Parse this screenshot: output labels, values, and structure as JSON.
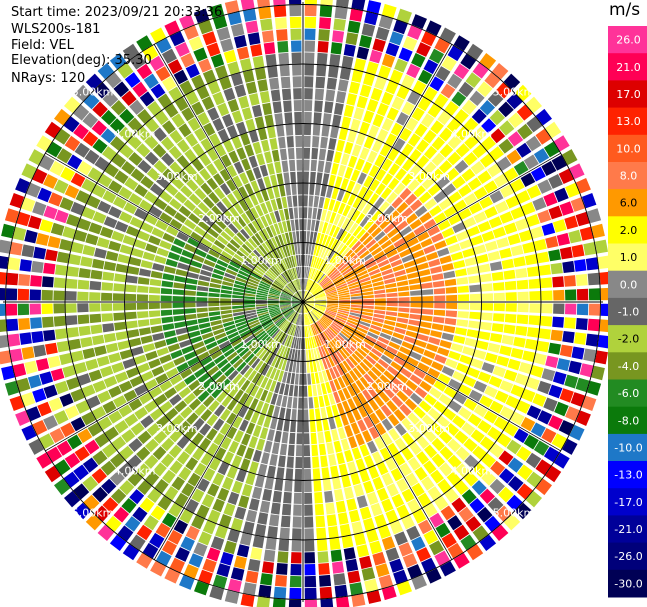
{
  "header": {
    "start_time": "Start time: 2023/09/21 20:33:36",
    "instrument": "WLS200s-181",
    "field": "Field: VEL",
    "elevation": "Elevation(deg): 35.30",
    "nrays": "NRays: 120"
  },
  "chart_data": {
    "type": "heatmap",
    "projection": "polar PPI",
    "field": "VEL",
    "n_rays": 120,
    "elevation_deg": 35.3,
    "max_range_km": 5.0,
    "range_rings_km": [
      1.0,
      2.0,
      3.0,
      4.0,
      5.0
    ],
    "ring_labels": [
      "1.00km",
      "2.00km",
      "3.00km",
      "4.00km",
      "5.00km"
    ],
    "colorbar": {
      "unit": "m/s",
      "range": [
        -30.0,
        30.0
      ],
      "tick_labels": [
        "26.0",
        "21.0",
        "17.0",
        "13.0",
        "10.0",
        "8.0",
        "6.0",
        "2.0",
        "1.0",
        "0.0",
        "-1.0",
        "-2.0",
        "-4.0",
        "-6.0",
        "-8.0",
        "-10.0",
        "-13.0",
        "-17.0",
        "-21.0",
        "-26.0",
        "-30.0"
      ],
      "bin_colors": [
        "#ff3399",
        "#ff0055",
        "#dd0000",
        "#ff2200",
        "#ff5a1e",
        "#ff7a4a",
        "#ff9900",
        "#ffff00",
        "#ffff66",
        "#888888",
        "#666666",
        "#b0d23c",
        "#789620",
        "#228b22",
        "#0b7a0b",
        "#1e78c8",
        "#0000ff",
        "#0000cc",
        "#000099",
        "#00007a",
        "#000055"
      ]
    },
    "pattern": {
      "positive_sector": "east (approx. az 0-180 deg), yellow/orange, +2 to +8 m/s near center",
      "negative_sector": "west (approx. az 180-360 deg), green/olive, -2 to -8 m/s near center",
      "noise_beyond_km": 4.2
    }
  }
}
